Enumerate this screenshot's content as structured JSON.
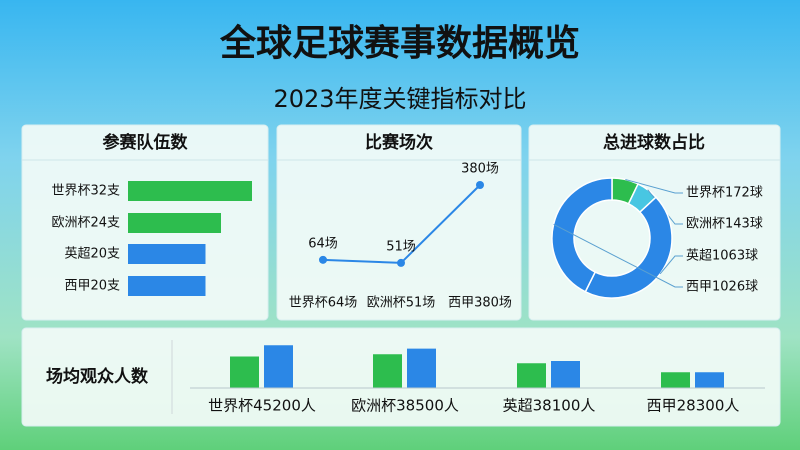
{
  "title": "全球足球赛事数据概览",
  "subtitle": "2023年度关键指标对比",
  "chart_data": [
    {
      "type": "hbar",
      "title": "参赛队伍数",
      "values": [
        32,
        24,
        20,
        20
      ],
      "value_labels": [
        "世界杯32支",
        "欧洲杯24支",
        "英超20支",
        "西甲20支"
      ],
      "colors": [
        "#2dbd4e",
        "#2dbd4e",
        "#2b87e6",
        "#2b87e6"
      ]
    },
    {
      "type": "line",
      "title": "比赛场次",
      "categories": [
        "世界杯64场",
        "欧洲杯51场",
        "西甲380场"
      ],
      "values": [
        64,
        51,
        380
      ],
      "value_labels": [
        "64场",
        "51场",
        "380场"
      ],
      "color": "#2b87e6"
    },
    {
      "type": "donut",
      "title": "总进球数占比",
      "values": [
        172,
        143,
        1063,
        1026
      ],
      "value_labels": [
        "世界杯172球",
        "欧洲杯143球",
        "英超1063球",
        "西甲1026球"
      ],
      "colors": [
        "#2dbd4e",
        "#48c6e2",
        "#2b87e6",
        "#2b87e6"
      ]
    },
    {
      "type": "grouped-bar",
      "title": "场均观众人数",
      "categories": [
        "世界杯45200人",
        "欧洲杯38500人",
        "英超38100人",
        "西甲28300人"
      ],
      "ylim": [
        0,
        40
      ],
      "series": [
        {
          "color": "#2dbd4e",
          "values": [
            28,
            30,
            22,
            14
          ]
        },
        {
          "color": "#2b87e6",
          "values": [
            38,
            35,
            24,
            14
          ]
        }
      ]
    }
  ]
}
